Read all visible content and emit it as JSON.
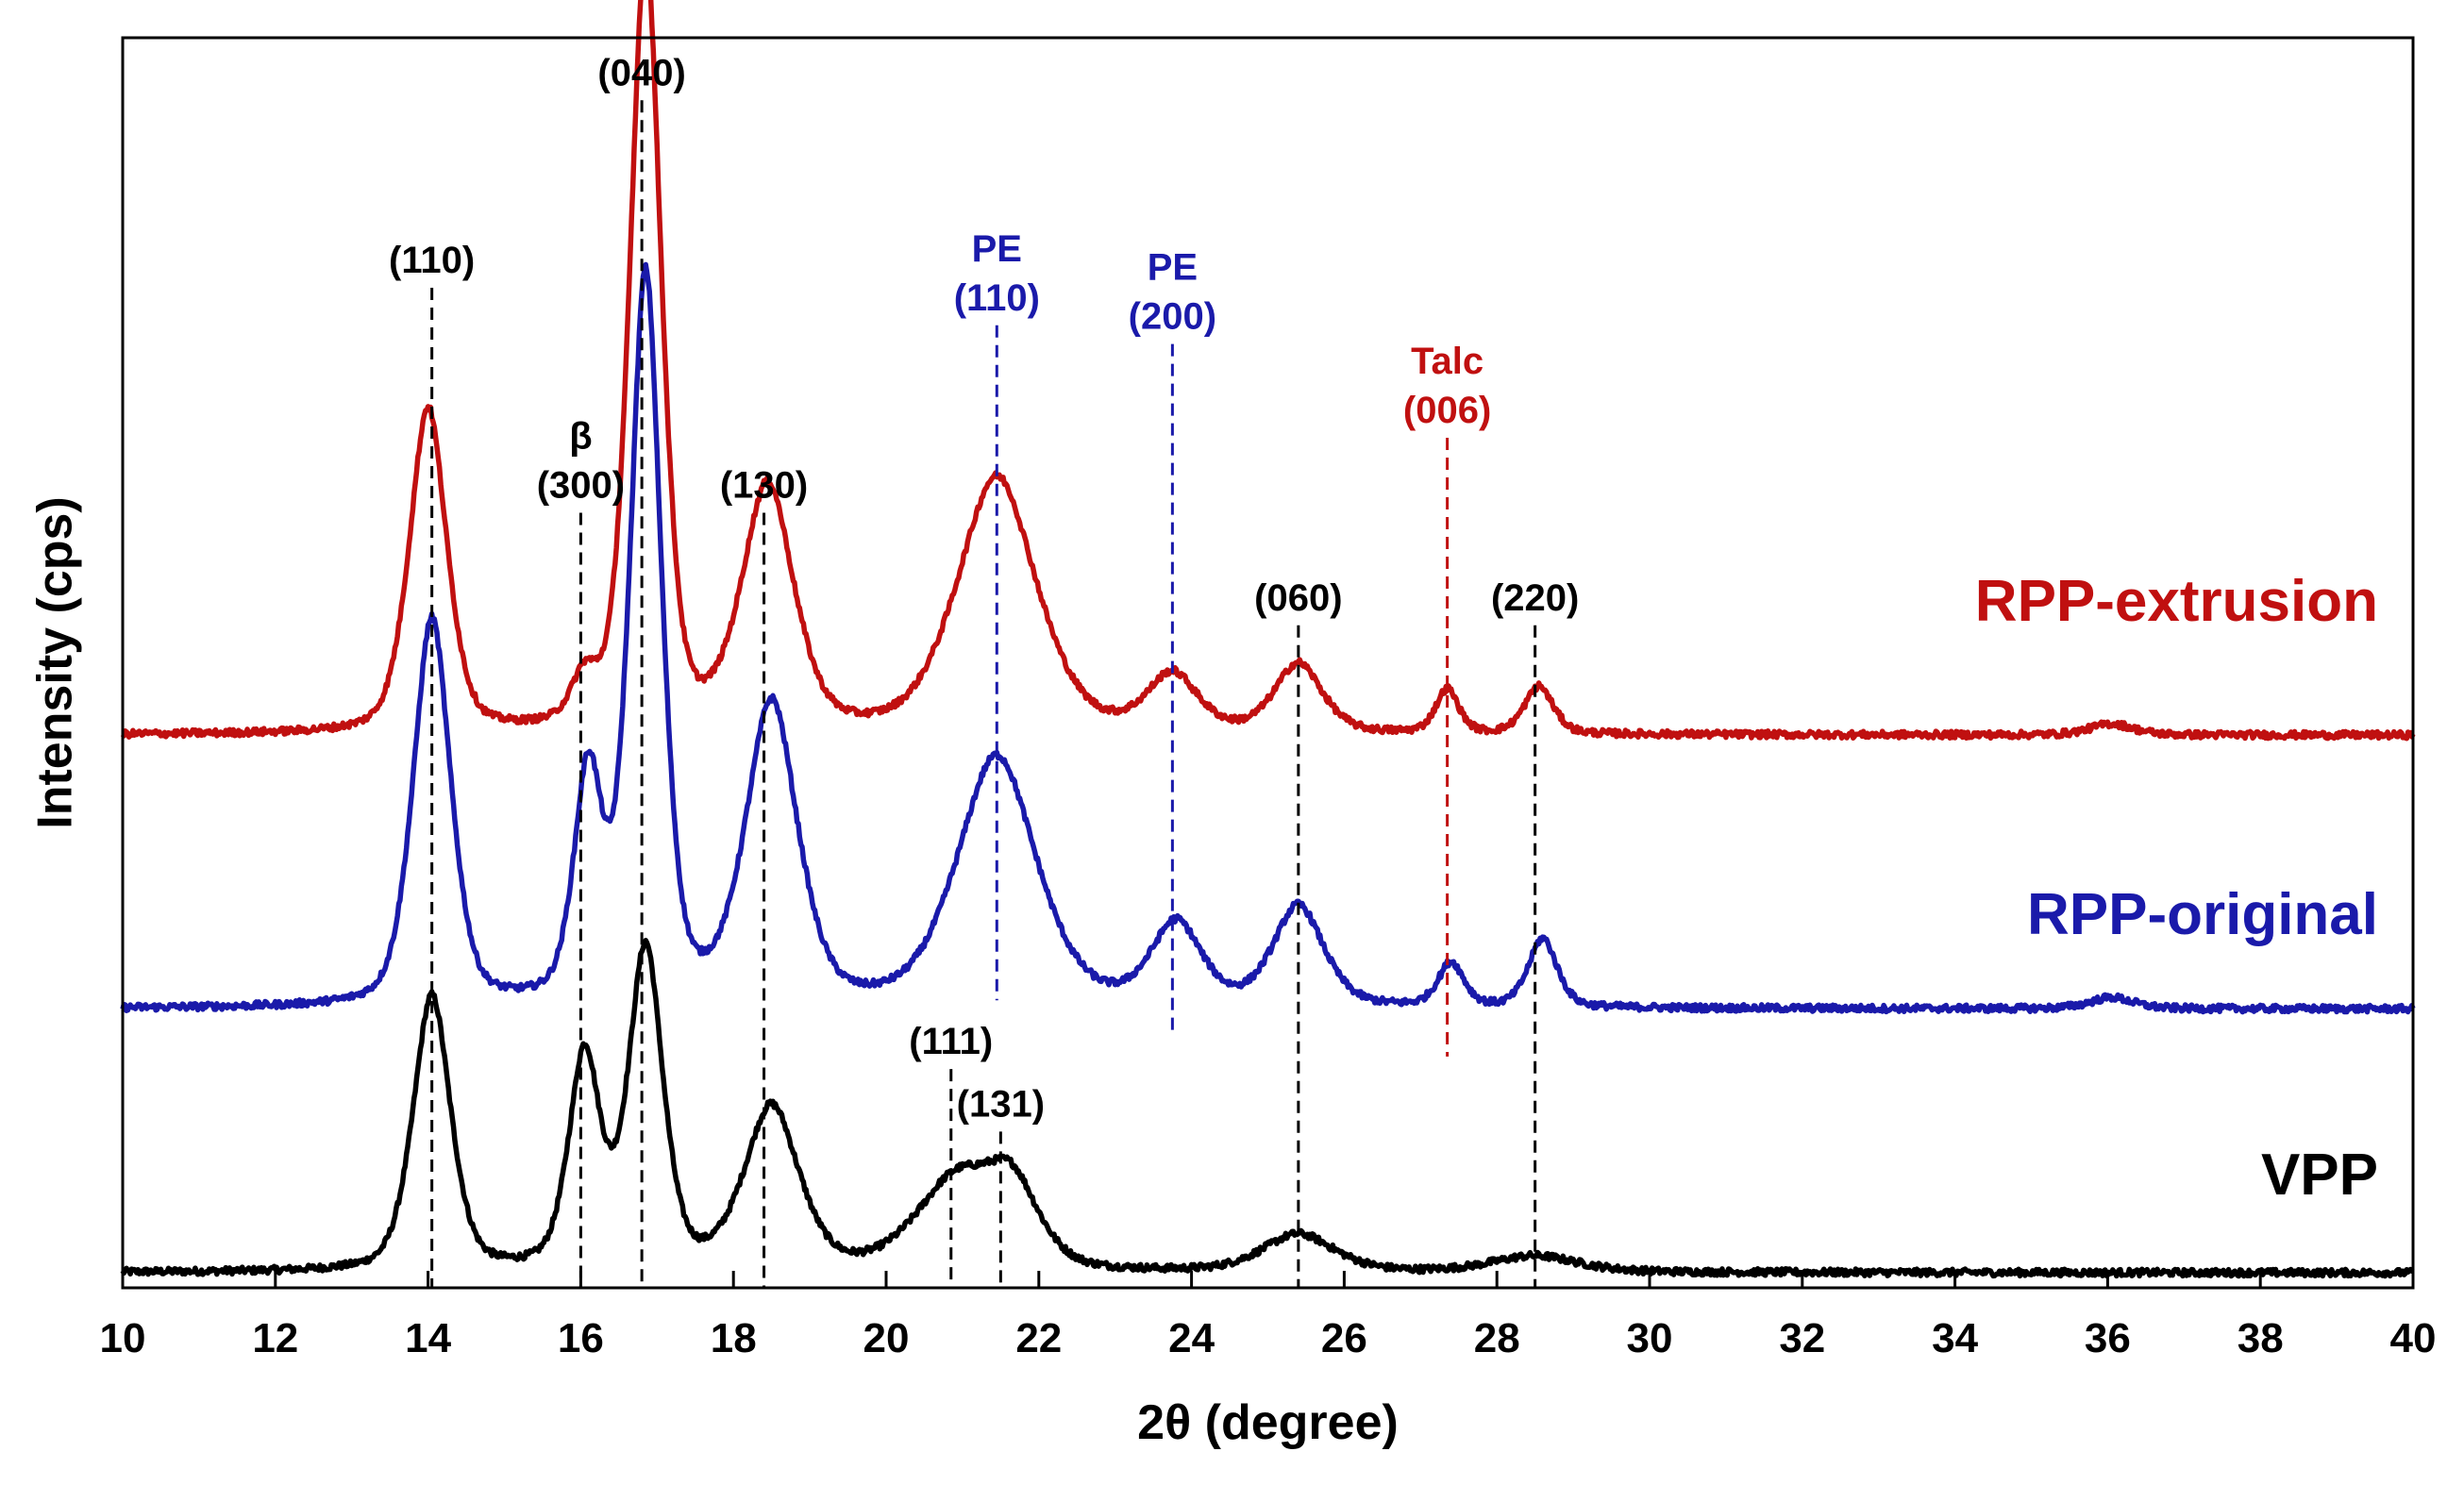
{
  "chart_data": {
    "type": "line",
    "title": "",
    "xlabel": "2θ (degree)",
    "ylabel": "Intensity (cps)",
    "xlim": [
      10,
      40
    ],
    "ylim": [
      0,
      100
    ],
    "xticks": [
      10,
      12,
      14,
      16,
      18,
      20,
      22,
      24,
      26,
      28,
      30,
      32,
      34,
      36,
      38,
      40
    ],
    "grid": false,
    "colors": {
      "VPP": "#000000",
      "RPP-original": "#1a1aaa",
      "RPP-extrusion": "#c01010"
    },
    "series": [
      {
        "name": "VPP",
        "baseline": 1.2,
        "peaks": [
          {
            "x": 14.05,
            "h": 22.0,
            "w": 0.26
          },
          {
            "x": 16.05,
            "h": 17.0,
            "w": 0.22
          },
          {
            "x": 16.85,
            "h": 25.5,
            "w": 0.24
          },
          {
            "x": 18.5,
            "h": 13.0,
            "w": 0.38
          },
          {
            "x": 20.9,
            "h": 7.0,
            "w": 0.55
          },
          {
            "x": 21.65,
            "h": 6.0,
            "w": 0.38
          },
          {
            "x": 25.4,
            "h": 3.0,
            "w": 0.5
          },
          {
            "x": 28.5,
            "h": 1.3,
            "w": 0.6
          }
        ]
      },
      {
        "name": "RPP-original",
        "baseline": 22.3,
        "peaks": [
          {
            "x": 14.05,
            "h": 31.0,
            "w": 0.26
          },
          {
            "x": 16.1,
            "h": 18.0,
            "w": 0.2
          },
          {
            "x": 16.85,
            "h": 58.0,
            "w": 0.22
          },
          {
            "x": 18.5,
            "h": 24.0,
            "w": 0.36
          },
          {
            "x": 21.45,
            "h": 20.0,
            "w": 0.55
          },
          {
            "x": 23.8,
            "h": 6.5,
            "w": 0.35
          },
          {
            "x": 25.4,
            "h": 8.0,
            "w": 0.35
          },
          {
            "x": 27.4,
            "h": 3.5,
            "w": 0.18
          },
          {
            "x": 28.6,
            "h": 5.5,
            "w": 0.2
          },
          {
            "x": 36.05,
            "h": 0.9,
            "w": 0.3
          }
        ]
      },
      {
        "name": "RPP-extrusion",
        "baseline": 44.2,
        "peaks": [
          {
            "x": 14.0,
            "h": 26.0,
            "w": 0.26
          },
          {
            "x": 16.05,
            "h": 3.5,
            "w": 0.18
          },
          {
            "x": 16.85,
            "h": 62.0,
            "w": 0.22
          },
          {
            "x": 18.45,
            "h": 19.5,
            "w": 0.36
          },
          {
            "x": 21.45,
            "h": 20.5,
            "w": 0.55
          },
          {
            "x": 23.75,
            "h": 4.5,
            "w": 0.35
          },
          {
            "x": 25.4,
            "h": 5.5,
            "w": 0.33
          },
          {
            "x": 27.35,
            "h": 3.5,
            "w": 0.16
          },
          {
            "x": 28.55,
            "h": 3.8,
            "w": 0.2
          },
          {
            "x": 36.05,
            "h": 0.9,
            "w": 0.3
          }
        ]
      }
    ],
    "series_labels": [
      {
        "text": "RPP-extrusion",
        "color": "#c01010"
      },
      {
        "text": "RPP-original",
        "color": "#1a1aaa"
      },
      {
        "text": "VPP",
        "color": "#000000"
      }
    ],
    "annotations": [
      {
        "x": 14.05,
        "y_top": 80.0,
        "y_bottom": 0.0,
        "color": "#000000",
        "label": [
          "(110)"
        ]
      },
      {
        "x": 16.0,
        "y_top": 62.0,
        "y_bottom": 0.0,
        "color": "#000000",
        "label": [
          "β",
          "(300)"
        ]
      },
      {
        "x": 16.8,
        "y_top": 95.0,
        "y_bottom": 0.0,
        "color": "#000000",
        "label": [
          "(040)"
        ]
      },
      {
        "x": 18.4,
        "y_top": 62.0,
        "y_bottom": 0.0,
        "color": "#000000",
        "label": [
          "(130)"
        ]
      },
      {
        "x": 21.45,
        "y_top": 77.0,
        "y_bottom": 23.0,
        "color": "#1a1aaa",
        "label": [
          "PE",
          "(110)"
        ]
      },
      {
        "x": 23.75,
        "y_top": 75.5,
        "y_bottom": 20.5,
        "color": "#1a1aaa",
        "label": [
          "PE",
          "(200)"
        ]
      },
      {
        "x": 27.35,
        "y_top": 68.0,
        "y_bottom": 18.5,
        "color": "#c01010",
        "label": [
          "Talc",
          "(006)"
        ]
      },
      {
        "x": 25.4,
        "y_top": 53.0,
        "y_bottom": 0.0,
        "color": "#000000",
        "label": [
          "(060)"
        ]
      },
      {
        "x": 28.5,
        "y_top": 53.0,
        "y_bottom": 0.0,
        "color": "#000000",
        "label": [
          "(220)"
        ]
      },
      {
        "x": 20.85,
        "y_top": 17.5,
        "y_bottom": 0.0,
        "color": "#000000",
        "label": [
          "(111)"
        ]
      },
      {
        "x": 21.5,
        "y_top": 12.5,
        "y_bottom": 0.0,
        "color": "#000000",
        "label": [
          "(131)"
        ]
      }
    ]
  }
}
